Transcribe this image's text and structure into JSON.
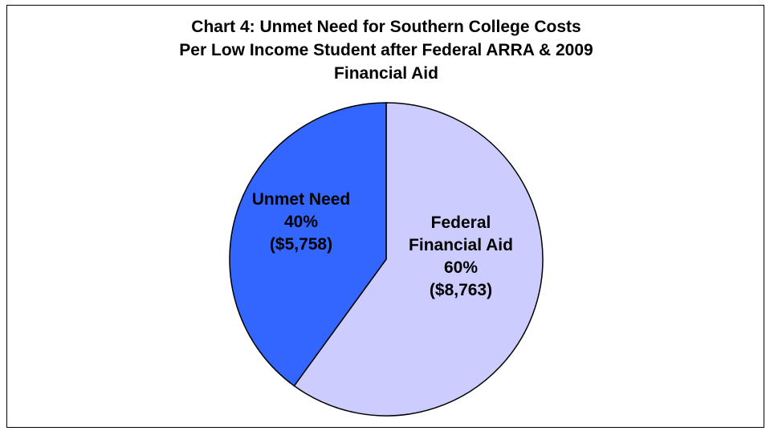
{
  "chart_data": {
    "type": "pie",
    "title_lines": [
      "Chart 4: Unmet Need for Southern College Costs",
      "Per Low Income Student after Federal ARRA & 2009",
      "Financial Aid"
    ],
    "slices": [
      {
        "category": "Federal Financial Aid",
        "percent": 60,
        "amount": 8763,
        "label_lines": [
          "Federal",
          "Financial Aid",
          "60%",
          "($8,763)"
        ],
        "color": "#ccccff"
      },
      {
        "category": "Unmet Need",
        "percent": 40,
        "amount": 5758,
        "label_lines": [
          "Unmet Need",
          "40%",
          "($5,758)"
        ],
        "color": "#3366ff"
      }
    ],
    "start_angle_deg": 0,
    "direction": "clockwise",
    "legend": "none"
  }
}
